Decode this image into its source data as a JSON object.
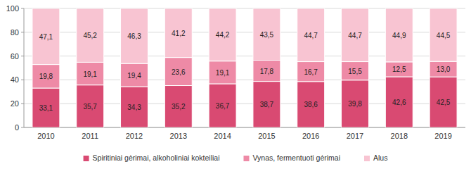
{
  "chart_data": {
    "type": "bar",
    "stacked": true,
    "data_labels": true,
    "grid": true,
    "legend": "bottom",
    "categories": [
      "2010",
      "2011",
      "2012",
      "2013",
      "2014",
      "2015",
      "2016",
      "2017",
      "2018",
      "2019"
    ],
    "ylim": [
      0,
      100
    ],
    "yticks": [
      0,
      20,
      40,
      60,
      80,
      100
    ],
    "series": [
      {
        "name": "Spiritiniai gėrimai, alkoholiniai kokteiliai",
        "color": "#d94a72",
        "values": [
          33.1,
          35.7,
          34.3,
          35.2,
          36.7,
          38.7,
          38.6,
          39.8,
          42.6,
          42.5
        ],
        "value_labels": [
          "33,1",
          "35,7",
          "34,3",
          "35,2",
          "36,7",
          "38,7",
          "38,6",
          "39,8",
          "42,6",
          "42,5"
        ]
      },
      {
        "name": "Vynas, fermentuoti gėrimai",
        "color": "#ee8aa6",
        "values": [
          19.8,
          19.1,
          19.4,
          23.6,
          19.1,
          17.8,
          16.7,
          15.5,
          12.5,
          13.0
        ],
        "value_labels": [
          "19,8",
          "19,1",
          "19,4",
          "23,6",
          "19,1",
          "17,8",
          "16,7",
          "15,5",
          "12,5",
          "13,0"
        ]
      },
      {
        "name": "Alus",
        "color": "#f8c4d2",
        "values": [
          47.1,
          45.2,
          46.3,
          41.2,
          44.2,
          43.5,
          44.7,
          44.7,
          44.9,
          44.5
        ],
        "value_labels": [
          "47,1",
          "45,2",
          "46,3",
          "41,2",
          "44,2",
          "43,5",
          "44,7",
          "44,7",
          "44,9",
          "44,5"
        ]
      }
    ]
  }
}
